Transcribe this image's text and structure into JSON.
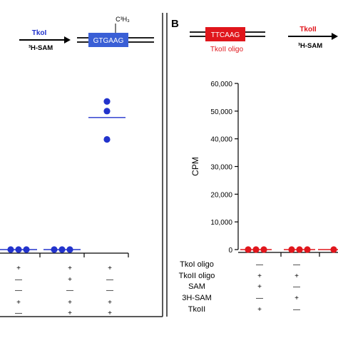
{
  "colors": {
    "panel_a_accent": "#2233cc",
    "panel_a_box": "#3a5fd6",
    "panel_b_accent": "#e0161c",
    "panel_b_box": "#e0161c",
    "frame": "#222222"
  },
  "panel_a": {
    "enzyme_label": "TkoI",
    "substrate_label": "³H-SAM",
    "box_sequence": "GTGAAG",
    "methyl_label": "C³H₃"
  },
  "panel_b": {
    "panel_letter": "B",
    "box_sequence": "TTCAAG",
    "oligo_label": "TkoII oligo",
    "enzyme_label": "TkoII",
    "substrate_label": "³H-SAM"
  },
  "chart_data": [
    {
      "type": "scatter",
      "panel": "A",
      "groups": [
        {
          "points": [
            0.3,
            0.3,
            0.3
          ],
          "mean": 0.3
        },
        {
          "points": [
            0.8,
            0.8,
            1.2
          ],
          "mean": 0.9
        },
        {
          "points": [
            53500,
            50000,
            39800
          ],
          "mean": 47700
        }
      ],
      "ylim": [
        0,
        60000
      ],
      "condition_rows": [
        [
          "+",
          "+",
          "+"
        ],
        [
          "—",
          "+",
          "—"
        ],
        [
          "—",
          "—",
          "—"
        ],
        [
          "+",
          "+",
          "+"
        ],
        [
          "—",
          "+",
          "+"
        ]
      ]
    },
    {
      "type": "scatter",
      "panel": "B",
      "ylabel": "CPM",
      "yticks": [
        "0",
        "10,000",
        "20,000",
        "30,000",
        "40,000",
        "50,000",
        "60,000"
      ],
      "ytick_values": [
        0,
        10000,
        20000,
        30000,
        40000,
        50000,
        60000
      ],
      "ylim": [
        0,
        60000
      ],
      "groups": [
        {
          "points": [
            0.3,
            0.3,
            0.3
          ],
          "mean": 0.3
        },
        {
          "points": [
            0.3,
            0.3,
            0.3
          ],
          "mean": 0.3
        },
        {
          "points": [
            0.3
          ],
          "mean": 0.3
        }
      ],
      "condition_labels": [
        "TkoI oligo",
        "TkoII oligo",
        "SAM",
        "3H-SAM",
        "TkoII"
      ],
      "condition_rows": [
        [
          "—",
          "—",
          ""
        ],
        [
          "+",
          "+",
          ""
        ],
        [
          "+",
          "—",
          ""
        ],
        [
          "—",
          "+",
          ""
        ],
        [
          "+",
          "—",
          ""
        ]
      ]
    }
  ]
}
